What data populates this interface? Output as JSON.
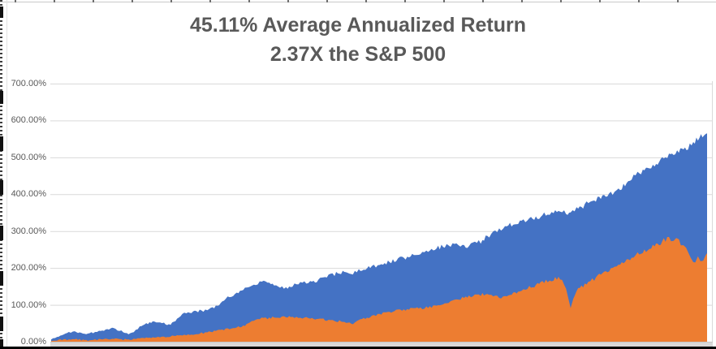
{
  "chart": {
    "title_lines": [
      "45.11% Average Annualized Return",
      "2.37X the S&P 500"
    ],
    "title_color": "#595959"
  },
  "chart_data": {
    "type": "area",
    "title": "45.11% Average Annualized Return",
    "subtitle": "2.37X the S&P 500",
    "xlabel": "",
    "ylabel": "",
    "ylim": [
      0,
      700
    ],
    "grid": true,
    "legend": "none",
    "x_axis_labels_visible": false,
    "y_unit": "percent",
    "y_ticks": [
      {
        "label": "700.00%",
        "value": 700
      },
      {
        "label": "600.00%",
        "value": 600
      },
      {
        "label": "500.00%",
        "value": 500
      },
      {
        "label": "400.00%",
        "value": 400
      },
      {
        "label": "300.00%",
        "value": 300
      },
      {
        "label": "200.00%",
        "value": 200
      },
      {
        "label": "100.00%",
        "value": 100
      },
      {
        "label": "0.00%",
        "value": 0
      }
    ],
    "colors": {
      "series_blue": "#4472C4",
      "series_orange": "#ED7D31",
      "gridline": "#D9D9D9",
      "axis_text": "#595959",
      "title_text": "#595959",
      "baseline_strip": "#D8D8D8",
      "bottom_border": "#000000"
    },
    "series": [
      {
        "id": "blue-area",
        "color": "#4472C4",
        "points_format": "[x_fraction_of_timeline, cumulative_return_percent]",
        "points": [
          [
            0.0,
            6
          ],
          [
            0.009,
            14
          ],
          [
            0.019,
            19
          ],
          [
            0.027,
            24
          ],
          [
            0.036,
            28
          ],
          [
            0.046,
            24
          ],
          [
            0.056,
            21
          ],
          [
            0.064,
            25
          ],
          [
            0.073,
            28
          ],
          [
            0.083,
            32
          ],
          [
            0.093,
            36
          ],
          [
            0.101,
            31
          ],
          [
            0.11,
            27
          ],
          [
            0.118,
            21
          ],
          [
            0.126,
            27
          ],
          [
            0.135,
            40
          ],
          [
            0.145,
            48
          ],
          [
            0.155,
            55
          ],
          [
            0.163,
            54
          ],
          [
            0.172,
            50
          ],
          [
            0.182,
            46
          ],
          [
            0.192,
            60
          ],
          [
            0.2,
            77
          ],
          [
            0.209,
            80
          ],
          [
            0.219,
            82
          ],
          [
            0.229,
            84
          ],
          [
            0.238,
            86
          ],
          [
            0.246,
            92
          ],
          [
            0.256,
            97
          ],
          [
            0.266,
            118
          ],
          [
            0.275,
            123
          ],
          [
            0.283,
            132
          ],
          [
            0.293,
            142
          ],
          [
            0.303,
            150
          ],
          [
            0.312,
            155
          ],
          [
            0.321,
            162
          ],
          [
            0.33,
            160
          ],
          [
            0.34,
            152
          ],
          [
            0.349,
            148
          ],
          [
            0.358,
            146
          ],
          [
            0.368,
            152
          ],
          [
            0.377,
            156
          ],
          [
            0.386,
            160
          ],
          [
            0.395,
            163
          ],
          [
            0.405,
            166
          ],
          [
            0.415,
            172
          ],
          [
            0.423,
            178
          ],
          [
            0.432,
            183
          ],
          [
            0.442,
            187
          ],
          [
            0.452,
            190
          ],
          [
            0.46,
            186
          ],
          [
            0.469,
            192
          ],
          [
            0.479,
            198
          ],
          [
            0.489,
            204
          ],
          [
            0.498,
            208
          ],
          [
            0.506,
            212
          ],
          [
            0.516,
            217
          ],
          [
            0.526,
            222
          ],
          [
            0.535,
            226
          ],
          [
            0.543,
            230
          ],
          [
            0.553,
            234
          ],
          [
            0.563,
            240
          ],
          [
            0.572,
            246
          ],
          [
            0.58,
            251
          ],
          [
            0.59,
            255
          ],
          [
            0.6,
            258
          ],
          [
            0.609,
            261
          ],
          [
            0.618,
            264
          ],
          [
            0.627,
            261
          ],
          [
            0.637,
            258
          ],
          [
            0.646,
            265
          ],
          [
            0.655,
            271
          ],
          [
            0.665,
            285
          ],
          [
            0.674,
            298
          ],
          [
            0.683,
            305
          ],
          [
            0.692,
            311
          ],
          [
            0.702,
            317
          ],
          [
            0.712,
            322
          ],
          [
            0.72,
            327
          ],
          [
            0.729,
            330
          ],
          [
            0.739,
            336
          ],
          [
            0.749,
            342
          ],
          [
            0.757,
            348
          ],
          [
            0.766,
            353
          ],
          [
            0.776,
            356
          ],
          [
            0.785,
            352
          ],
          [
            0.792,
            348
          ],
          [
            0.801,
            358
          ],
          [
            0.811,
            368
          ],
          [
            0.819,
            378
          ],
          [
            0.828,
            385
          ],
          [
            0.838,
            392
          ],
          [
            0.848,
            398
          ],
          [
            0.856,
            404
          ],
          [
            0.865,
            412
          ],
          [
            0.875,
            428
          ],
          [
            0.885,
            442
          ],
          [
            0.894,
            455
          ],
          [
            0.902,
            464
          ],
          [
            0.912,
            473
          ],
          [
            0.92,
            481
          ],
          [
            0.927,
            489
          ],
          [
            0.934,
            496
          ],
          [
            0.942,
            503
          ],
          [
            0.949,
            509
          ],
          [
            0.957,
            516
          ],
          [
            0.964,
            523
          ],
          [
            0.971,
            528
          ],
          [
            0.979,
            537
          ],
          [
            0.986,
            551
          ],
          [
            0.993,
            561
          ],
          [
            0.998,
            567
          ],
          [
            1.0,
            565
          ]
        ]
      },
      {
        "id": "orange-area",
        "color": "#ED7D31",
        "points_format": "[x_fraction_of_timeline, cumulative_return_percent]",
        "points": [
          [
            0.0,
            2
          ],
          [
            0.009,
            4
          ],
          [
            0.019,
            6
          ],
          [
            0.027,
            5
          ],
          [
            0.036,
            7
          ],
          [
            0.046,
            5
          ],
          [
            0.056,
            4
          ],
          [
            0.064,
            5
          ],
          [
            0.073,
            6
          ],
          [
            0.083,
            7
          ],
          [
            0.093,
            9
          ],
          [
            0.101,
            7
          ],
          [
            0.11,
            6
          ],
          [
            0.118,
            6
          ],
          [
            0.126,
            8
          ],
          [
            0.135,
            10
          ],
          [
            0.145,
            11
          ],
          [
            0.155,
            12
          ],
          [
            0.163,
            13
          ],
          [
            0.172,
            13
          ],
          [
            0.182,
            15
          ],
          [
            0.192,
            17
          ],
          [
            0.2,
            18
          ],
          [
            0.209,
            19
          ],
          [
            0.219,
            20
          ],
          [
            0.229,
            23
          ],
          [
            0.238,
            26
          ],
          [
            0.246,
            28
          ],
          [
            0.256,
            31
          ],
          [
            0.266,
            34
          ],
          [
            0.275,
            37
          ],
          [
            0.283,
            40
          ],
          [
            0.293,
            42
          ],
          [
            0.303,
            55
          ],
          [
            0.312,
            62
          ],
          [
            0.321,
            65
          ],
          [
            0.33,
            64
          ],
          [
            0.34,
            66
          ],
          [
            0.349,
            67
          ],
          [
            0.358,
            66
          ],
          [
            0.368,
            68
          ],
          [
            0.377,
            66
          ],
          [
            0.386,
            64
          ],
          [
            0.395,
            64
          ],
          [
            0.405,
            62
          ],
          [
            0.415,
            61
          ],
          [
            0.423,
            59
          ],
          [
            0.432,
            57
          ],
          [
            0.442,
            55
          ],
          [
            0.452,
            52
          ],
          [
            0.46,
            50
          ],
          [
            0.469,
            58
          ],
          [
            0.479,
            63
          ],
          [
            0.489,
            69
          ],
          [
            0.498,
            73
          ],
          [
            0.506,
            78
          ],
          [
            0.516,
            81
          ],
          [
            0.526,
            84
          ],
          [
            0.535,
            86
          ],
          [
            0.543,
            88
          ],
          [
            0.553,
            89
          ],
          [
            0.563,
            91
          ],
          [
            0.572,
            93
          ],
          [
            0.58,
            95
          ],
          [
            0.59,
            98
          ],
          [
            0.6,
            104
          ],
          [
            0.609,
            110
          ],
          [
            0.618,
            115
          ],
          [
            0.627,
            118
          ],
          [
            0.637,
            122
          ],
          [
            0.646,
            126
          ],
          [
            0.655,
            128
          ],
          [
            0.665,
            129
          ],
          [
            0.674,
            124
          ],
          [
            0.683,
            121
          ],
          [
            0.692,
            121
          ],
          [
            0.702,
            130
          ],
          [
            0.712,
            136
          ],
          [
            0.72,
            142
          ],
          [
            0.729,
            147
          ],
          [
            0.739,
            153
          ],
          [
            0.749,
            160
          ],
          [
            0.757,
            166
          ],
          [
            0.766,
            170
          ],
          [
            0.776,
            173
          ],
          [
            0.782,
            158
          ],
          [
            0.788,
            122
          ],
          [
            0.792,
            93
          ],
          [
            0.796,
            118
          ],
          [
            0.801,
            139
          ],
          [
            0.811,
            151
          ],
          [
            0.819,
            161
          ],
          [
            0.828,
            170
          ],
          [
            0.838,
            183
          ],
          [
            0.848,
            192
          ],
          [
            0.856,
            200
          ],
          [
            0.865,
            208
          ],
          [
            0.875,
            216
          ],
          [
            0.885,
            227
          ],
          [
            0.894,
            238
          ],
          [
            0.902,
            245
          ],
          [
            0.912,
            253
          ],
          [
            0.92,
            259
          ],
          [
            0.927,
            265
          ],
          [
            0.934,
            274
          ],
          [
            0.942,
            281
          ],
          [
            0.945,
            273
          ],
          [
            0.949,
            280
          ],
          [
            0.953,
            287
          ],
          [
            0.957,
            276
          ],
          [
            0.96,
            266
          ],
          [
            0.964,
            262
          ],
          [
            0.968,
            252
          ],
          [
            0.971,
            248
          ],
          [
            0.975,
            228
          ],
          [
            0.979,
            210
          ],
          [
            0.982,
            220
          ],
          [
            0.986,
            227
          ],
          [
            0.99,
            219
          ],
          [
            0.994,
            222
          ],
          [
            0.998,
            230
          ],
          [
            1.0,
            240
          ]
        ]
      }
    ]
  }
}
